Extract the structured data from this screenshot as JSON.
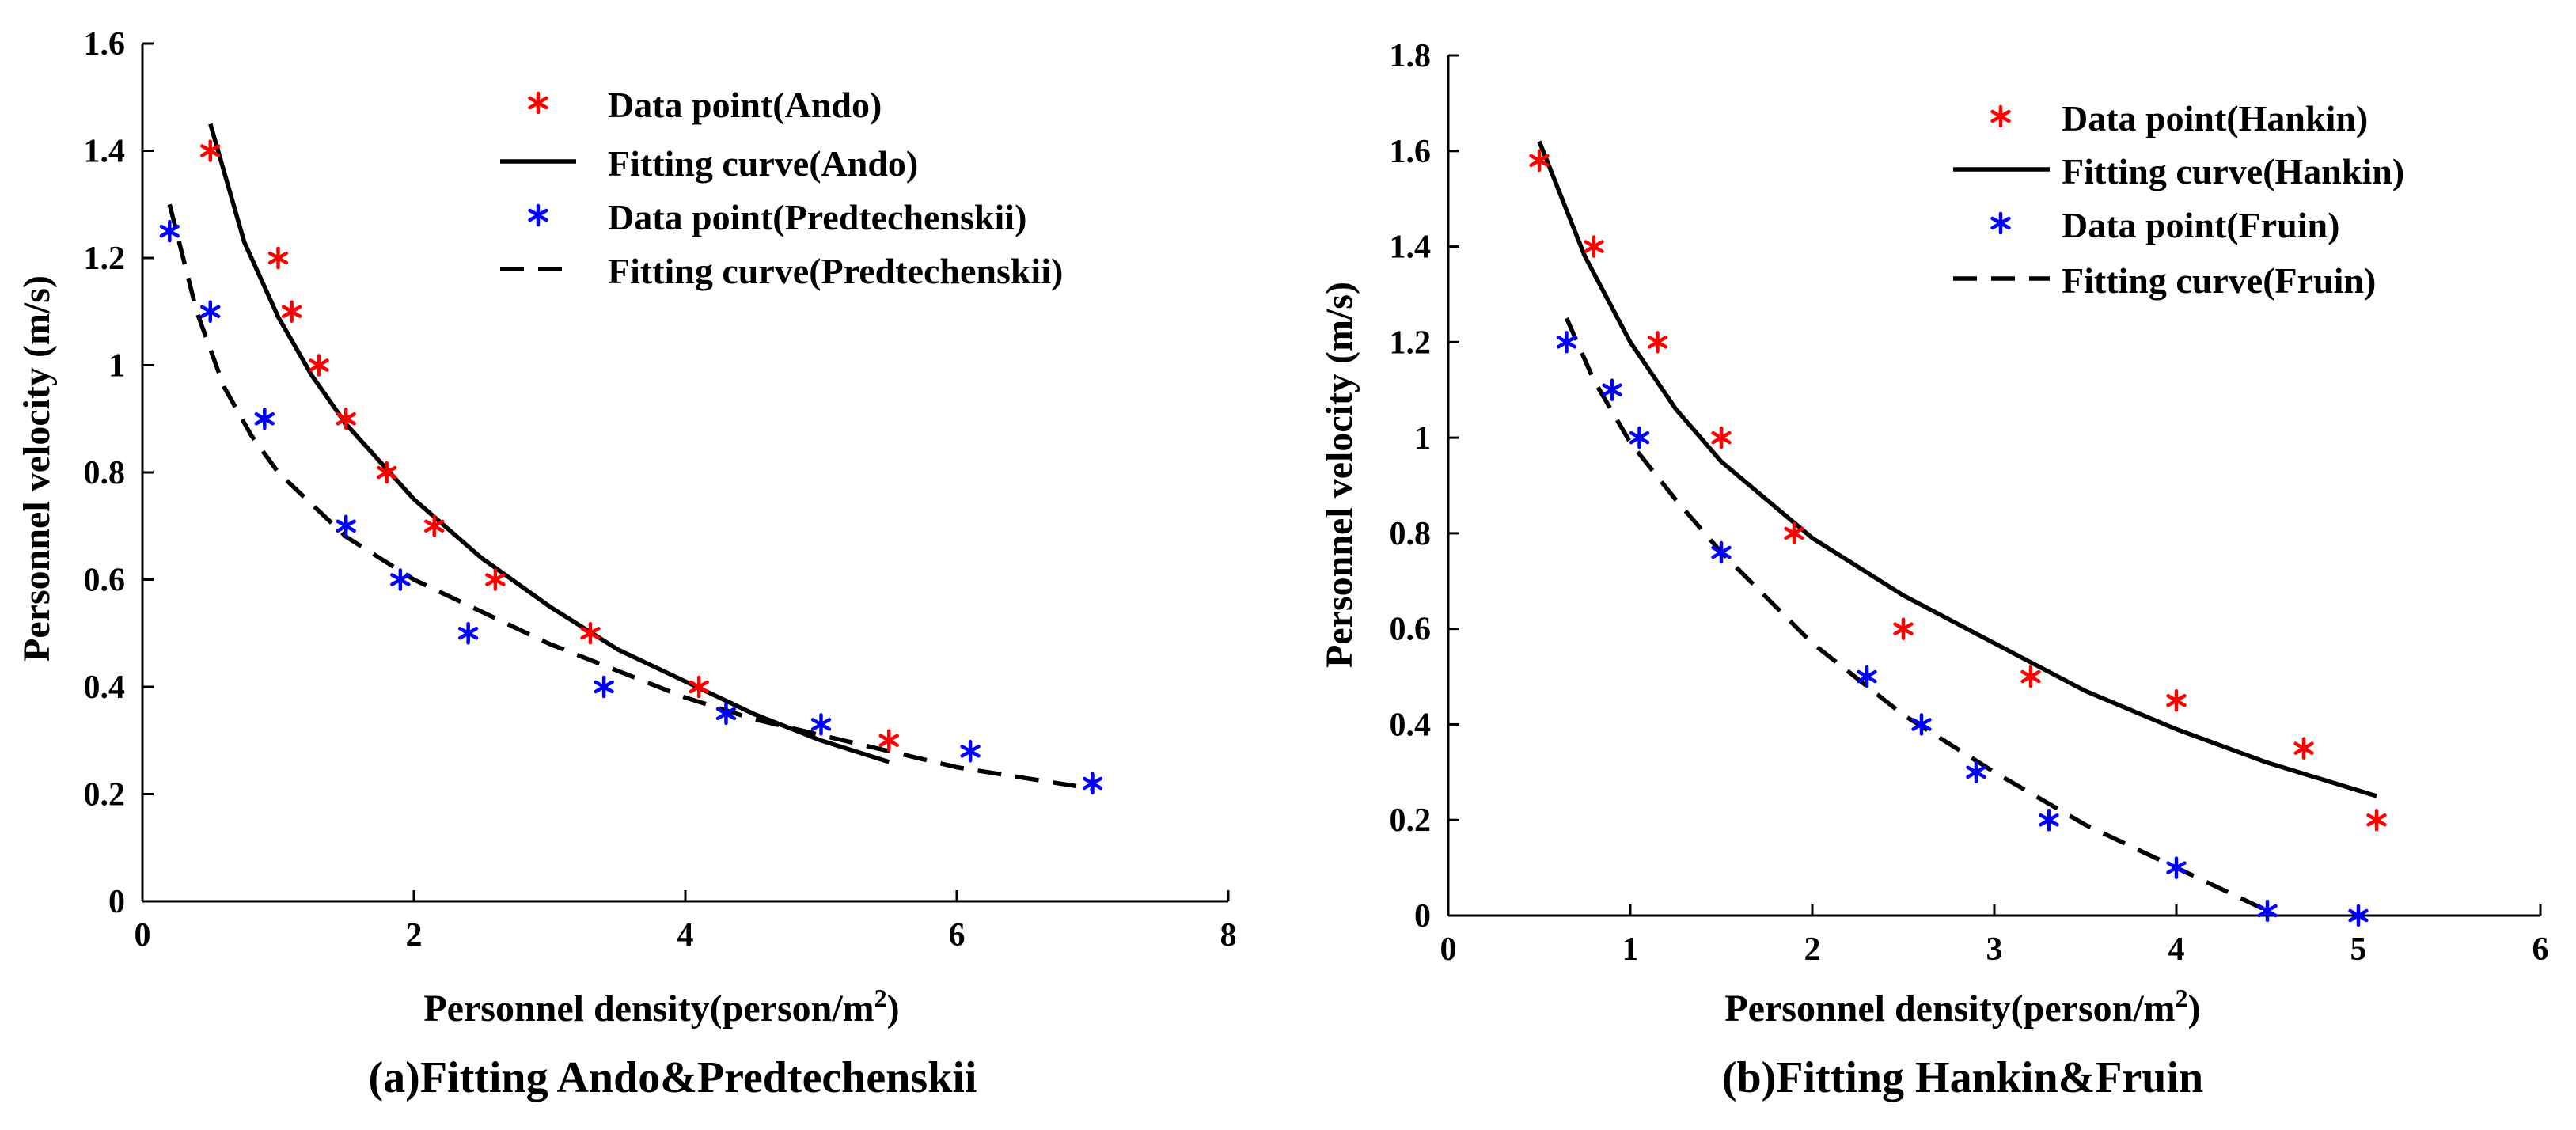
{
  "chart_data": [
    {
      "type": "scatter",
      "caption": "(a)Fitting Ando&Predtechenskii",
      "xlabel": "Personnel density(person/m",
      "xlabel_sup": "2",
      "xlabel_suffix": ")",
      "ylabel": "Personnel velocity (m/s)",
      "xlim": [
        0,
        8
      ],
      "ylim": [
        0,
        1.6
      ],
      "xticks": [
        0,
        2,
        4,
        6,
        8
      ],
      "yticks": [
        0,
        0.2,
        0.4,
        0.6,
        0.8,
        1,
        1.2,
        1.4,
        1.6
      ],
      "xtick_labels": [
        "0",
        "2",
        "4",
        "6",
        "8"
      ],
      "ytick_labels": [
        "0",
        "0.2",
        "0.4",
        "0.6",
        "0.8",
        "1",
        "1.2",
        "1.4",
        "1.6"
      ],
      "legend_position": "top-right",
      "series": [
        {
          "name": "Data point(Ando)",
          "kind": "points",
          "color": "#ff0000",
          "x": [
            0.5,
            1.0,
            1.1,
            1.3,
            1.5,
            1.8,
            2.15,
            2.6,
            3.3,
            4.1,
            5.5
          ],
          "y": [
            1.4,
            1.2,
            1.1,
            1.0,
            0.9,
            0.8,
            0.7,
            0.6,
            0.5,
            0.4,
            0.3
          ]
        },
        {
          "name": "Fitting curve(Ando)",
          "kind": "line",
          "style": "solid",
          "color": "#000000",
          "x": [
            0.5,
            0.75,
            1.0,
            1.25,
            1.5,
            2.0,
            2.5,
            3.0,
            3.5,
            4.0,
            4.5,
            5.0,
            5.5
          ],
          "y": [
            1.45,
            1.23,
            1.09,
            0.98,
            0.89,
            0.75,
            0.64,
            0.55,
            0.47,
            0.41,
            0.35,
            0.3,
            0.26
          ]
        },
        {
          "name": "Data point(Predtechenskii)",
          "kind": "points",
          "color": "#0000ff",
          "x": [
            0.2,
            0.5,
            0.9,
            1.5,
            1.9,
            2.4,
            3.4,
            4.3,
            5.0,
            6.1,
            7.0
          ],
          "y": [
            1.25,
            1.1,
            0.9,
            0.7,
            0.6,
            0.5,
            0.4,
            0.35,
            0.33,
            0.28,
            0.22
          ]
        },
        {
          "name": "Fitting curve(Predtechenskii)",
          "kind": "line",
          "style": "dashed",
          "color": "#000000",
          "x": [
            0.2,
            0.4,
            0.6,
            0.8,
            1.0,
            1.5,
            2.0,
            2.5,
            3.0,
            3.5,
            4.0,
            4.5,
            5.0,
            5.5,
            6.0,
            6.5,
            7.0
          ],
          "y": [
            1.3,
            1.1,
            0.96,
            0.87,
            0.8,
            0.68,
            0.6,
            0.54,
            0.48,
            0.43,
            0.38,
            0.34,
            0.31,
            0.28,
            0.25,
            0.23,
            0.21
          ]
        }
      ]
    },
    {
      "type": "scatter",
      "caption": "(b)Fitting Hankin&Fruin",
      "xlabel": "Personnel density(person/m",
      "xlabel_sup": "2",
      "xlabel_suffix": ")",
      "ylabel": "Personnel velocity (m/s)",
      "xlim": [
        0,
        6
      ],
      "ylim": [
        0,
        1.8
      ],
      "xticks": [
        0,
        1,
        2,
        3,
        4,
        5,
        6
      ],
      "yticks": [
        0,
        0.2,
        0.4,
        0.6,
        0.8,
        1,
        1.2,
        1.4,
        1.6,
        1.8
      ],
      "xtick_labels": [
        "0",
        "1",
        "2",
        "3",
        "4",
        "5",
        "6"
      ],
      "ytick_labels": [
        "0",
        "0.2",
        "0.4",
        "0.6",
        "0.8",
        "1",
        "1.2",
        "1.4",
        "1.6",
        "1.8"
      ],
      "legend_position": "top-right",
      "series": [
        {
          "name": "Data point(Hankin)",
          "kind": "points",
          "color": "#ff0000",
          "x": [
            0.5,
            0.8,
            1.15,
            1.5,
            1.9,
            2.5,
            3.2,
            4.0,
            4.7,
            5.1
          ],
          "y": [
            1.58,
            1.4,
            1.2,
            1.0,
            0.8,
            0.6,
            0.5,
            0.45,
            0.35,
            0.2
          ]
        },
        {
          "name": "Fitting curve(Hankin)",
          "kind": "line",
          "style": "solid",
          "color": "#000000",
          "x": [
            0.5,
            0.75,
            1.0,
            1.25,
            1.5,
            2.0,
            2.5,
            3.0,
            3.5,
            4.0,
            4.5,
            5.1
          ],
          "y": [
            1.62,
            1.38,
            1.2,
            1.06,
            0.95,
            0.79,
            0.67,
            0.57,
            0.47,
            0.39,
            0.32,
            0.25
          ]
        },
        {
          "name": "Data point(Fruin)",
          "kind": "points",
          "color": "#0000ff",
          "x": [
            0.65,
            0.9,
            1.05,
            1.5,
            2.3,
            2.6,
            2.9,
            3.3,
            4.0,
            4.5,
            5.0
          ],
          "y": [
            1.2,
            1.1,
            1.0,
            0.76,
            0.5,
            0.4,
            0.3,
            0.2,
            0.1,
            0.01,
            0.0
          ]
        },
        {
          "name": "Fitting curve(Fruin)",
          "kind": "line",
          "style": "dashed",
          "color": "#000000",
          "x": [
            0.65,
            0.8,
            1.0,
            1.25,
            1.5,
            2.0,
            2.5,
            3.0,
            3.5,
            4.0,
            4.5
          ],
          "y": [
            1.25,
            1.12,
            0.99,
            0.87,
            0.76,
            0.57,
            0.42,
            0.3,
            0.19,
            0.1,
            0.01
          ]
        }
      ]
    }
  ]
}
